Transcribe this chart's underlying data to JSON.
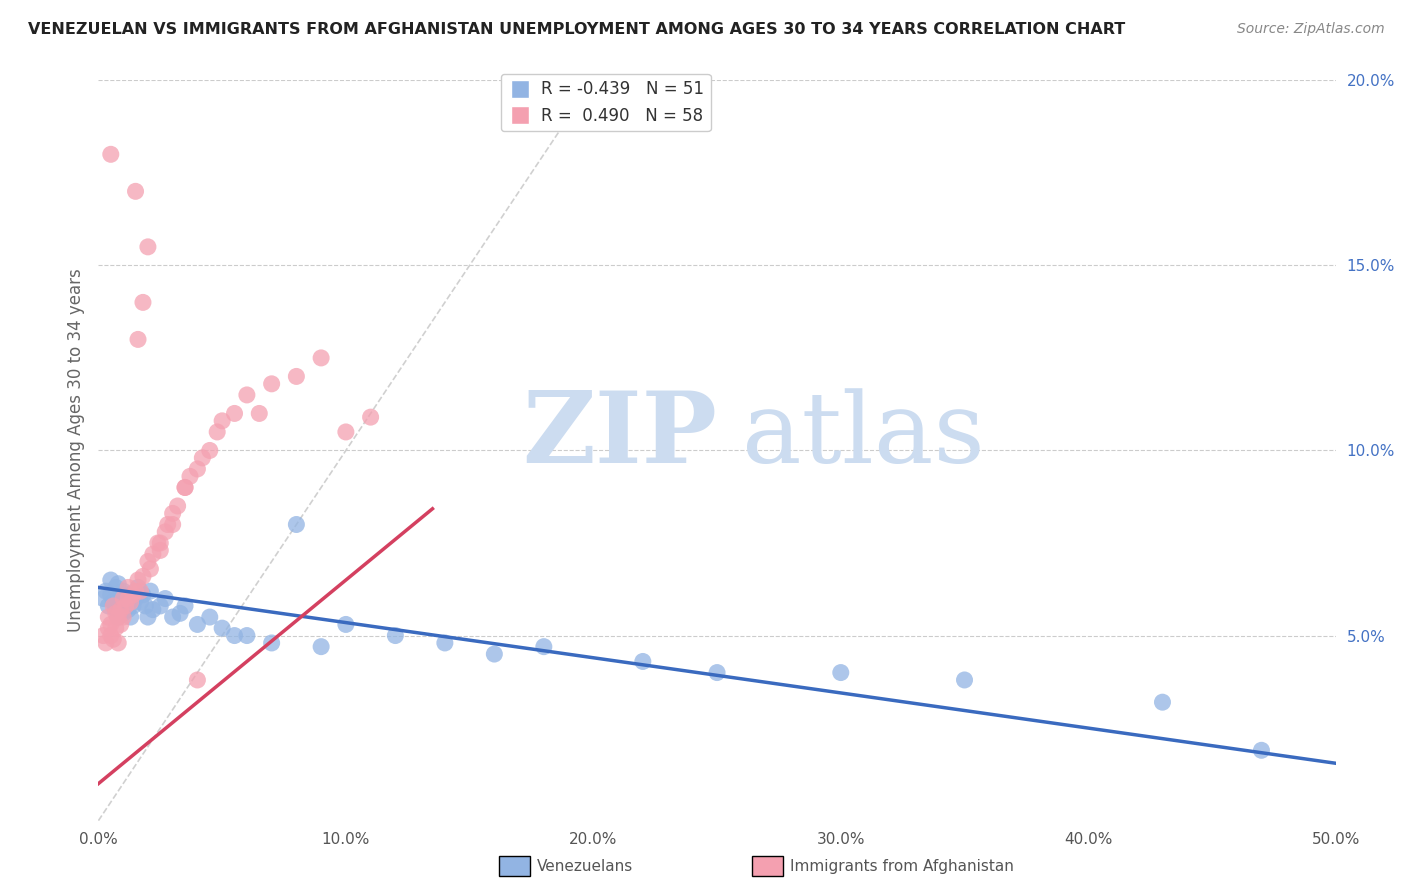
{
  "title": "VENEZUELAN VS IMMIGRANTS FROM AFGHANISTAN UNEMPLOYMENT AMONG AGES 30 TO 34 YEARS CORRELATION CHART",
  "source": "Source: ZipAtlas.com",
  "ylabel": "Unemployment Among Ages 30 to 34 years",
  "venezuelan_R": -0.439,
  "venezuelan_N": 51,
  "afghanistan_R": 0.49,
  "afghanistan_N": 58,
  "venezuelan_color": "#92b4e3",
  "afghanistan_color": "#f4a0b0",
  "venezuelan_line_color": "#3a6abf",
  "afghanistan_line_color": "#d44060",
  "reference_line_color": "#d0d0d0",
  "background_color": "#ffffff",
  "xlim": [
    0.0,
    0.5
  ],
  "ylim": [
    0.0,
    0.2
  ],
  "ven_intercept": 0.063,
  "ven_slope": -0.095,
  "afg_intercept": 0.01,
  "afg_slope": 0.55,
  "ven_x": [
    0.002,
    0.003,
    0.004,
    0.005,
    0.005,
    0.006,
    0.007,
    0.007,
    0.008,
    0.008,
    0.009,
    0.009,
    0.01,
    0.01,
    0.011,
    0.012,
    0.012,
    0.013,
    0.014,
    0.015,
    0.016,
    0.017,
    0.018,
    0.019,
    0.02,
    0.021,
    0.022,
    0.025,
    0.027,
    0.03,
    0.033,
    0.035,
    0.04,
    0.045,
    0.05,
    0.055,
    0.06,
    0.07,
    0.08,
    0.09,
    0.1,
    0.12,
    0.14,
    0.16,
    0.18,
    0.22,
    0.25,
    0.3,
    0.35,
    0.43,
    0.47
  ],
  "ven_y": [
    0.06,
    0.062,
    0.058,
    0.065,
    0.061,
    0.059,
    0.063,
    0.057,
    0.055,
    0.064,
    0.058,
    0.06,
    0.056,
    0.062,
    0.06,
    0.057,
    0.061,
    0.055,
    0.058,
    0.06,
    0.063,
    0.059,
    0.061,
    0.058,
    0.055,
    0.062,
    0.057,
    0.058,
    0.06,
    0.055,
    0.056,
    0.058,
    0.053,
    0.055,
    0.052,
    0.05,
    0.05,
    0.048,
    0.08,
    0.047,
    0.053,
    0.05,
    0.048,
    0.045,
    0.047,
    0.043,
    0.04,
    0.04,
    0.038,
    0.032,
    0.019
  ],
  "afg_x": [
    0.002,
    0.003,
    0.004,
    0.004,
    0.005,
    0.005,
    0.006,
    0.006,
    0.007,
    0.007,
    0.008,
    0.008,
    0.009,
    0.009,
    0.01,
    0.01,
    0.011,
    0.012,
    0.012,
    0.013,
    0.014,
    0.015,
    0.016,
    0.017,
    0.018,
    0.02,
    0.021,
    0.022,
    0.024,
    0.025,
    0.027,
    0.028,
    0.03,
    0.032,
    0.035,
    0.037,
    0.04,
    0.042,
    0.045,
    0.048,
    0.05,
    0.055,
    0.06,
    0.065,
    0.07,
    0.08,
    0.09,
    0.1,
    0.11,
    0.015,
    0.016,
    0.018,
    0.02,
    0.025,
    0.03,
    0.035,
    0.04,
    0.005
  ],
  "afg_y": [
    0.05,
    0.048,
    0.052,
    0.055,
    0.05,
    0.053,
    0.049,
    0.058,
    0.052,
    0.056,
    0.048,
    0.055,
    0.053,
    0.057,
    0.055,
    0.06,
    0.058,
    0.06,
    0.063,
    0.059,
    0.061,
    0.062,
    0.065,
    0.062,
    0.066,
    0.07,
    0.068,
    0.072,
    0.075,
    0.073,
    0.078,
    0.08,
    0.083,
    0.085,
    0.09,
    0.093,
    0.095,
    0.098,
    0.1,
    0.105,
    0.108,
    0.11,
    0.115,
    0.11,
    0.118,
    0.12,
    0.125,
    0.105,
    0.109,
    0.17,
    0.13,
    0.14,
    0.155,
    0.075,
    0.08,
    0.09,
    0.038,
    0.18
  ]
}
